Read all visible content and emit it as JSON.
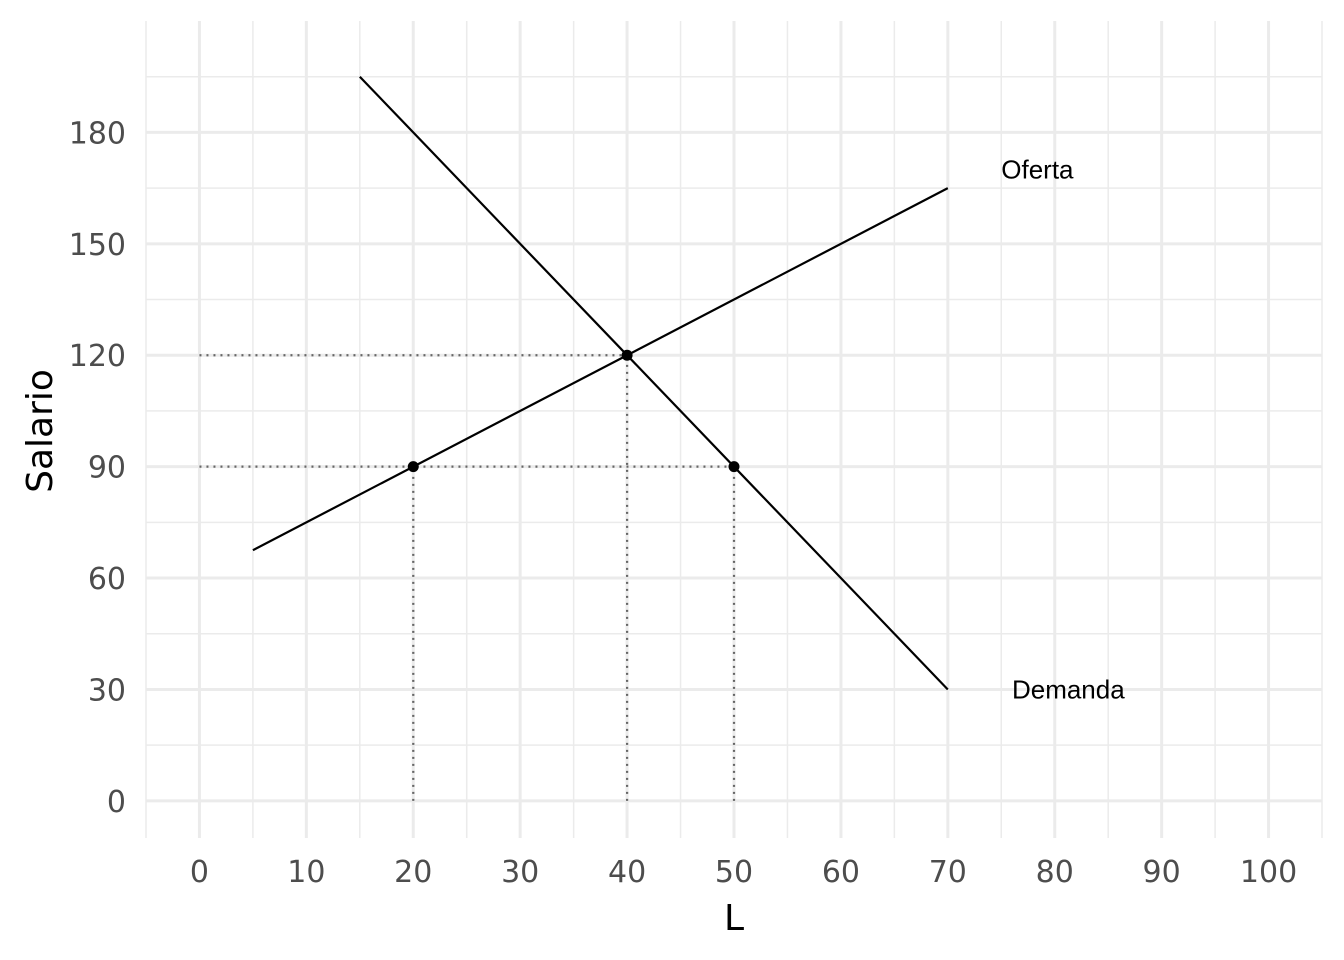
{
  "chart_data": {
    "type": "line",
    "xlabel": "L",
    "ylabel": "Salario",
    "xlim": [
      -5,
      105
    ],
    "ylim": [
      -10,
      210
    ],
    "x_ticks": [
      0,
      10,
      20,
      30,
      40,
      50,
      60,
      70,
      80,
      90,
      100
    ],
    "y_ticks": [
      0,
      30,
      60,
      90,
      120,
      150,
      180
    ],
    "grid": true,
    "series": [
      {
        "name": "Oferta",
        "x": [
          5,
          70
        ],
        "y": [
          67.5,
          165
        ]
      },
      {
        "name": "Demanda",
        "x": [
          15,
          70
        ],
        "y": [
          195,
          30
        ]
      }
    ],
    "points": [
      {
        "x": 20,
        "y": 90
      },
      {
        "x": 40,
        "y": 120
      },
      {
        "x": 50,
        "y": 90
      }
    ],
    "reference_lines": [
      {
        "from": [
          0,
          120
        ],
        "to": [
          40,
          120
        ]
      },
      {
        "from": [
          0,
          90
        ],
        "to": [
          50,
          90
        ]
      },
      {
        "from": [
          20,
          0
        ],
        "to": [
          20,
          90
        ]
      },
      {
        "from": [
          40,
          0
        ],
        "to": [
          40,
          120
        ]
      },
      {
        "from": [
          50,
          0
        ],
        "to": [
          50,
          90
        ]
      }
    ],
    "annotations": [
      {
        "text": "Oferta",
        "x": 75,
        "y": 170
      },
      {
        "text": "Demanda",
        "x": 76,
        "y": 30
      }
    ],
    "colors": {
      "line": "#000000",
      "grid": "#ebebeb",
      "reference": "#666666",
      "tick_text": "#4d4d4d"
    }
  }
}
